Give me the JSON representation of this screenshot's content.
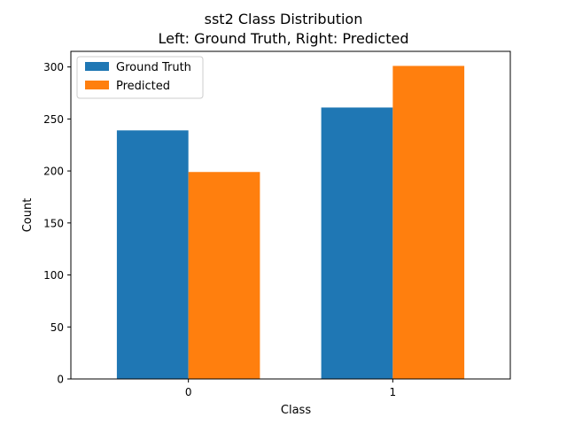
{
  "chart_data": {
    "type": "bar",
    "title_line1": "sst2 Class Distribution",
    "title_line2": "Left: Ground Truth, Right: Predicted",
    "xlabel": "Class",
    "ylabel": "Count",
    "categories": [
      "0",
      "1"
    ],
    "ylim": [
      0,
      315
    ],
    "yticks": [
      0,
      50,
      100,
      150,
      200,
      250,
      300
    ],
    "grid": false,
    "legend_position": "top-left",
    "series": [
      {
        "name": "Ground Truth",
        "values": [
          239,
          261
        ],
        "color": "#1f77b4"
      },
      {
        "name": "Predicted",
        "values": [
          199,
          301
        ],
        "color": "#ff7f0e"
      }
    ]
  }
}
